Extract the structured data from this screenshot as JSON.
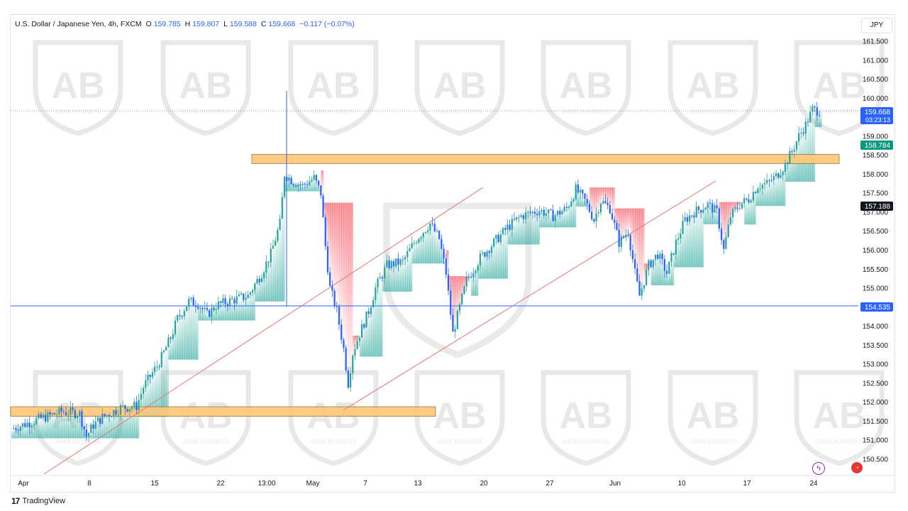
{
  "header": {
    "symbol": "U.S. Dollar / Japanese Yen, 4h, FXCM",
    "open_label": "O",
    "open": "159.785",
    "high_label": "H",
    "high": "159.807",
    "low_label": "L",
    "low": "159.588",
    "close_label": "C",
    "close": "159.668",
    "change": "−0.117 (−0.07%)"
  },
  "currency_button": "JPY",
  "footer": {
    "logo_mark": "17",
    "logo_text": "TradingView"
  },
  "watermark": "ARAB BUSINESS",
  "colors": {
    "up": "#26a69a",
    "down": "#2962ff",
    "zone": "#ffc77a",
    "trendline": "#e57373",
    "support_line": "#2962ff",
    "cloud_up": "#26a69a",
    "cloud_down": "#f23645"
  },
  "chart_data": {
    "type": "candlestick",
    "timeframe": "4h",
    "y_ticks": [
      "161.500",
      "161.000",
      "160.500",
      "160.000",
      "159.500",
      "159.000",
      "158.500",
      "158.000",
      "157.500",
      "157.000",
      "156.500",
      "156.000",
      "155.500",
      "155.000",
      "154.500",
      "154.000",
      "153.500",
      "153.000",
      "152.500",
      "152.000",
      "151.500",
      "151.000",
      "150.500"
    ],
    "x_ticks": [
      "Apr",
      "8",
      "15",
      "22",
      "13:00",
      "May",
      "7",
      "13",
      "20",
      "27",
      "Jun",
      "10",
      "17",
      "24"
    ],
    "ylim": [
      150.3,
      161.8
    ],
    "price_labels": [
      {
        "value": "159.668",
        "sub": "03:23:13",
        "color": "#2962ff"
      },
      {
        "value": "158.784",
        "color": "#089981"
      },
      {
        "value": "157.188",
        "color": "#131722"
      },
      {
        "value": "154.535",
        "color": "#2962ff"
      }
    ],
    "horizontal_line": 154.535,
    "current_price": 159.668,
    "zones": [
      {
        "from": 158.28,
        "to": 158.52,
        "start": "13:00",
        "end": "24+"
      },
      {
        "from": 151.63,
        "to": 151.88,
        "start": "Apr",
        "end": "13"
      }
    ],
    "trendlines": [
      {
        "from": [
          "Apr",
          150.5
        ],
        "to": [
          "20",
          157.8
        ]
      },
      {
        "from": [
          "May+",
          151.8
        ],
        "to": [
          "17",
          158.2
        ]
      }
    ],
    "price_path": [
      [
        0,
        151.3
      ],
      [
        12,
        151.55
      ],
      [
        22,
        151.75
      ],
      [
        30,
        151.7
      ],
      [
        33,
        151.1
      ],
      [
        36,
        151.4
      ],
      [
        40,
        151.6
      ],
      [
        48,
        151.85
      ],
      [
        55,
        151.9
      ],
      [
        58,
        152.4
      ],
      [
        65,
        153.05
      ],
      [
        70,
        153.7
      ],
      [
        73,
        154.2
      ],
      [
        78,
        154.65
      ],
      [
        82,
        154.6
      ],
      [
        86,
        154.3
      ],
      [
        90,
        154.55
      ],
      [
        98,
        154.7
      ],
      [
        104,
        154.8
      ],
      [
        110,
        155.4
      ],
      [
        114,
        155.9
      ],
      [
        118,
        156.7
      ],
      [
        120,
        158.0
      ],
      [
        124,
        157.8
      ],
      [
        128,
        157.7
      ],
      [
        133,
        157.9
      ],
      [
        136,
        157.5
      ],
      [
        138,
        156.1
      ],
      [
        140,
        155.0
      ],
      [
        143,
        154.4
      ],
      [
        146,
        153.4
      ],
      [
        148,
        152.5
      ],
      [
        150,
        153.3
      ],
      [
        153,
        153.8
      ],
      [
        157,
        154.4
      ],
      [
        160,
        155.0
      ],
      [
        165,
        155.6
      ],
      [
        172,
        155.7
      ],
      [
        178,
        156.3
      ],
      [
        184,
        156.7
      ],
      [
        188,
        156.3
      ],
      [
        191,
        155.4
      ],
      [
        194,
        153.8
      ],
      [
        197,
        154.5
      ],
      [
        200,
        155.2
      ],
      [
        206,
        155.8
      ],
      [
        212,
        156.2
      ],
      [
        218,
        156.6
      ],
      [
        224,
        156.9
      ],
      [
        232,
        157.05
      ],
      [
        238,
        156.9
      ],
      [
        244,
        157.1
      ],
      [
        248,
        157.6
      ],
      [
        252,
        157.3
      ],
      [
        256,
        156.8
      ],
      [
        259,
        157.3
      ],
      [
        263,
        157.1
      ],
      [
        267,
        156.2
      ],
      [
        271,
        156.5
      ],
      [
        274,
        155.4
      ],
      [
        276,
        154.8
      ],
      [
        280,
        155.6
      ],
      [
        284,
        155.9
      ],
      [
        288,
        155.4
      ],
      [
        292,
        156.2
      ],
      [
        296,
        156.8
      ],
      [
        300,
        157.0
      ],
      [
        306,
        157.2
      ],
      [
        310,
        157.0
      ],
      [
        313,
        156.0
      ],
      [
        316,
        156.9
      ],
      [
        320,
        157.2
      ],
      [
        324,
        157.35
      ],
      [
        328,
        157.7
      ],
      [
        332,
        157.75
      ],
      [
        336,
        157.95
      ],
      [
        340,
        158.25
      ],
      [
        343,
        158.6
      ],
      [
        346,
        159.0
      ],
      [
        349,
        159.3
      ],
      [
        352,
        159.7
      ],
      [
        355,
        159.67
      ]
    ]
  }
}
